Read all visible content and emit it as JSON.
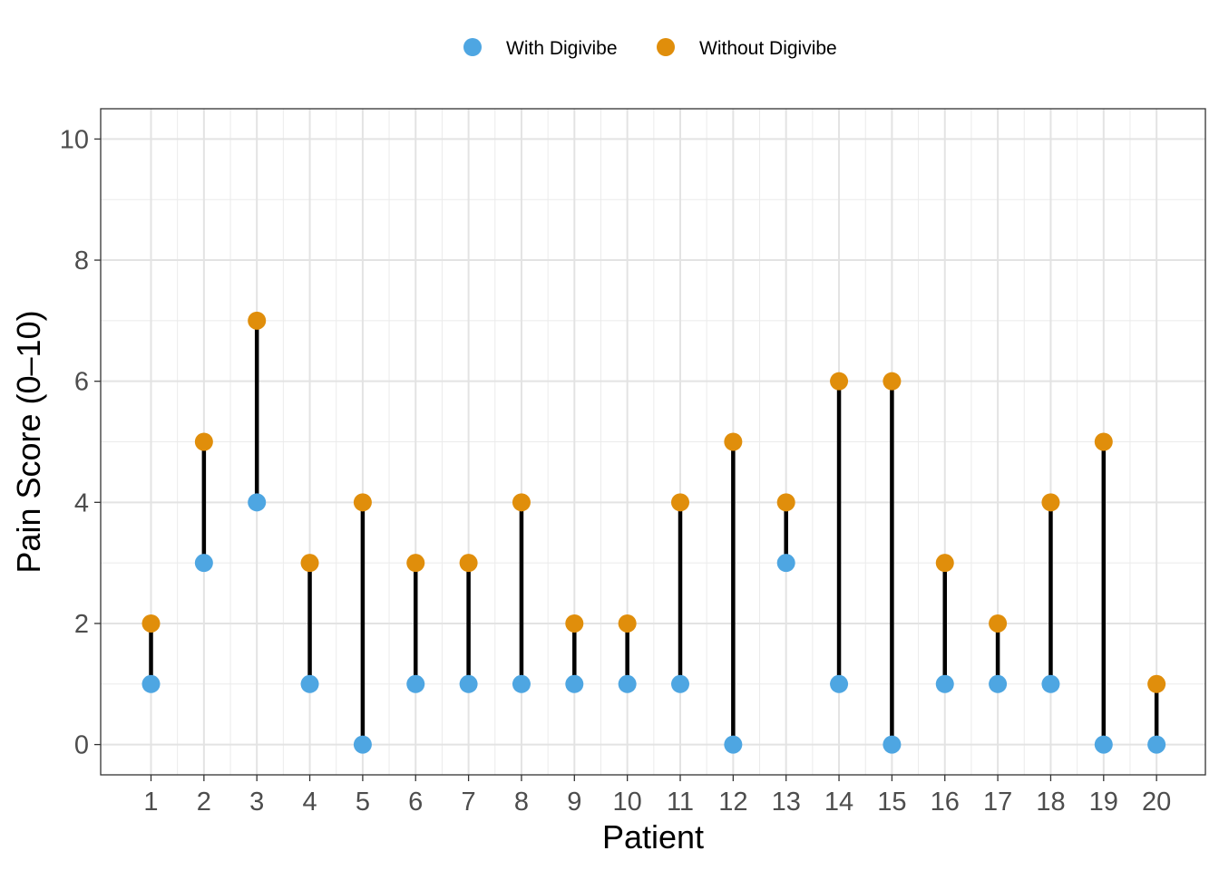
{
  "chart_data": {
    "type": "scatter",
    "subtype": "dumbbell",
    "title": "",
    "xlabel": "Patient",
    "ylabel": "Pain Score (0–10)",
    "categories": [
      "1",
      "2",
      "3",
      "4",
      "5",
      "6",
      "7",
      "8",
      "9",
      "10",
      "11",
      "12",
      "13",
      "14",
      "15",
      "16",
      "17",
      "18",
      "19",
      "20"
    ],
    "ylim": [
      -0.5,
      10.5
    ],
    "yticks": [
      "0",
      "2",
      "4",
      "6",
      "8",
      "10"
    ],
    "grid": true,
    "legend_position": "top",
    "series": [
      {
        "name": "With Digivibe",
        "color": "#4EA6E2",
        "values": [
          1,
          3,
          4,
          1,
          0,
          1,
          1,
          1,
          1,
          1,
          1,
          0,
          3,
          1,
          0,
          1,
          1,
          1,
          0,
          0
        ]
      },
      {
        "name": "Without Digivibe",
        "color": "#E08E0B",
        "values": [
          2,
          5,
          7,
          3,
          4,
          3,
          3,
          4,
          2,
          2,
          4,
          5,
          4,
          6,
          6,
          3,
          2,
          4,
          5,
          1
        ]
      }
    ],
    "connector_color": "#000000"
  }
}
